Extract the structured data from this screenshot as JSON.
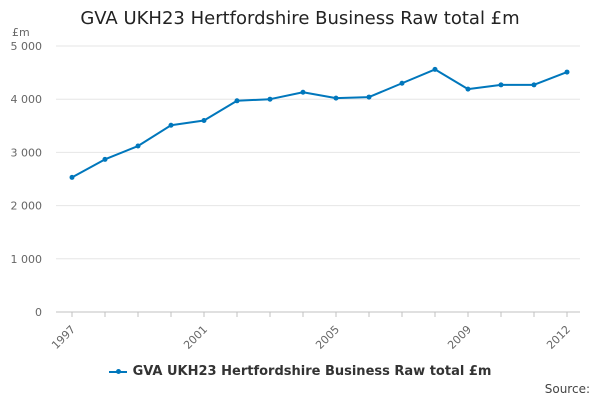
{
  "chart_data": {
    "type": "line",
    "title": "GVA UKH23 Hertfordshire Business Raw total £m",
    "ylabel": "£m",
    "xlabel": "",
    "x": [
      "1997",
      "1998",
      "1999",
      "2000",
      "2001",
      "2002",
      "2003",
      "2004",
      "2005",
      "2006",
      "2007",
      "2008",
      "2009",
      "2010",
      "2011",
      "2012"
    ],
    "x_tick_labels": [
      "1997",
      "2001",
      "2005",
      "2009",
      "2012"
    ],
    "y_tick_labels": [
      "0",
      "1 000",
      "2 000",
      "3 000",
      "4 000",
      "5 000"
    ],
    "ylim": [
      0,
      5000
    ],
    "grid": true,
    "legend_position": "bottom",
    "series": [
      {
        "name": "GVA UKH23 Hertfordshire Business Raw total £m",
        "color": "#0077bc",
        "values": [
          2530,
          2870,
          3120,
          3510,
          3600,
          3970,
          4000,
          4130,
          4020,
          4040,
          4300,
          4560,
          4190,
          4270,
          4270,
          4510
        ]
      }
    ]
  },
  "footer": {
    "source_label": "Source:"
  }
}
